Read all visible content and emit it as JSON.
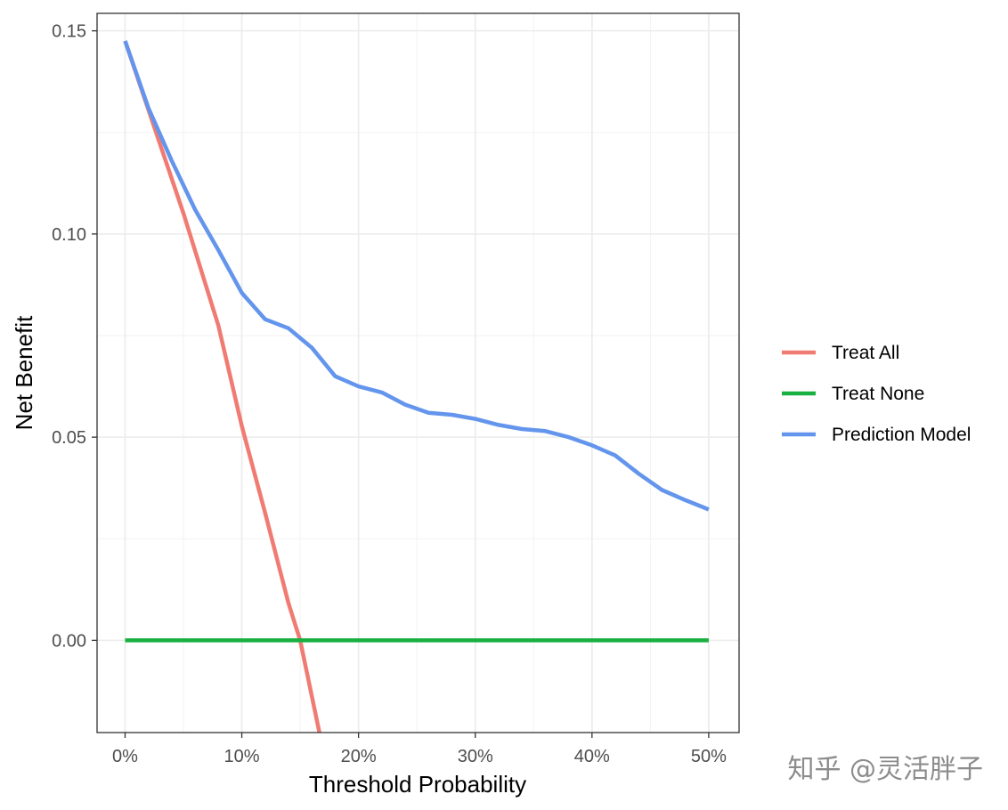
{
  "chart_data": {
    "type": "line",
    "xlabel": "Threshold Probability",
    "ylabel": "Net Benefit",
    "xlim": [
      -0.024,
      0.526
    ],
    "ylim": [
      -0.0227,
      0.1543
    ],
    "x_ticks": [
      0,
      0.1,
      0.2,
      0.3,
      0.4,
      0.5
    ],
    "x_tick_labels": [
      "0%",
      "10%",
      "20%",
      "30%",
      "40%",
      "50%"
    ],
    "y_ticks": [
      0,
      0.05,
      0.1,
      0.15
    ],
    "y_tick_labels": [
      "0.00",
      "0.05",
      "0.10",
      "0.15"
    ],
    "grid": true,
    "legend_position": "right",
    "series": [
      {
        "name": "Treat All",
        "color": "#F07B72",
        "points": [
          [
            0,
            0.1475
          ],
          [
            0.05,
            0.1051
          ],
          [
            0.08,
            0.0774
          ],
          [
            0.1,
            0.0527
          ],
          [
            0.12,
            0.0313
          ],
          [
            0.14,
            0.0091
          ],
          [
            0.15,
            0.0
          ],
          [
            0.1665,
            -0.0227
          ]
        ]
      },
      {
        "name": "Treat None",
        "color": "#18B040",
        "points": [
          [
            0,
            0.0
          ],
          [
            0.5,
            0.0
          ]
        ]
      },
      {
        "name": "Prediction Model",
        "color": "#6495ED",
        "points": [
          [
            0,
            0.1475
          ],
          [
            0.02,
            0.131
          ],
          [
            0.04,
            0.118
          ],
          [
            0.06,
            0.106
          ],
          [
            0.08,
            0.096
          ],
          [
            0.1,
            0.0855
          ],
          [
            0.12,
            0.079
          ],
          [
            0.14,
            0.0768
          ],
          [
            0.16,
            0.072
          ],
          [
            0.18,
            0.065
          ],
          [
            0.2,
            0.0625
          ],
          [
            0.22,
            0.061
          ],
          [
            0.24,
            0.058
          ],
          [
            0.26,
            0.056
          ],
          [
            0.28,
            0.0555
          ],
          [
            0.3,
            0.0545
          ],
          [
            0.32,
            0.053
          ],
          [
            0.34,
            0.052
          ],
          [
            0.36,
            0.0515
          ],
          [
            0.38,
            0.05
          ],
          [
            0.4,
            0.048
          ],
          [
            0.42,
            0.0455
          ],
          [
            0.44,
            0.041
          ],
          [
            0.46,
            0.037
          ],
          [
            0.48,
            0.0345
          ],
          [
            0.5,
            0.0322
          ]
        ]
      }
    ]
  },
  "watermark": "知乎 @灵活胖子"
}
